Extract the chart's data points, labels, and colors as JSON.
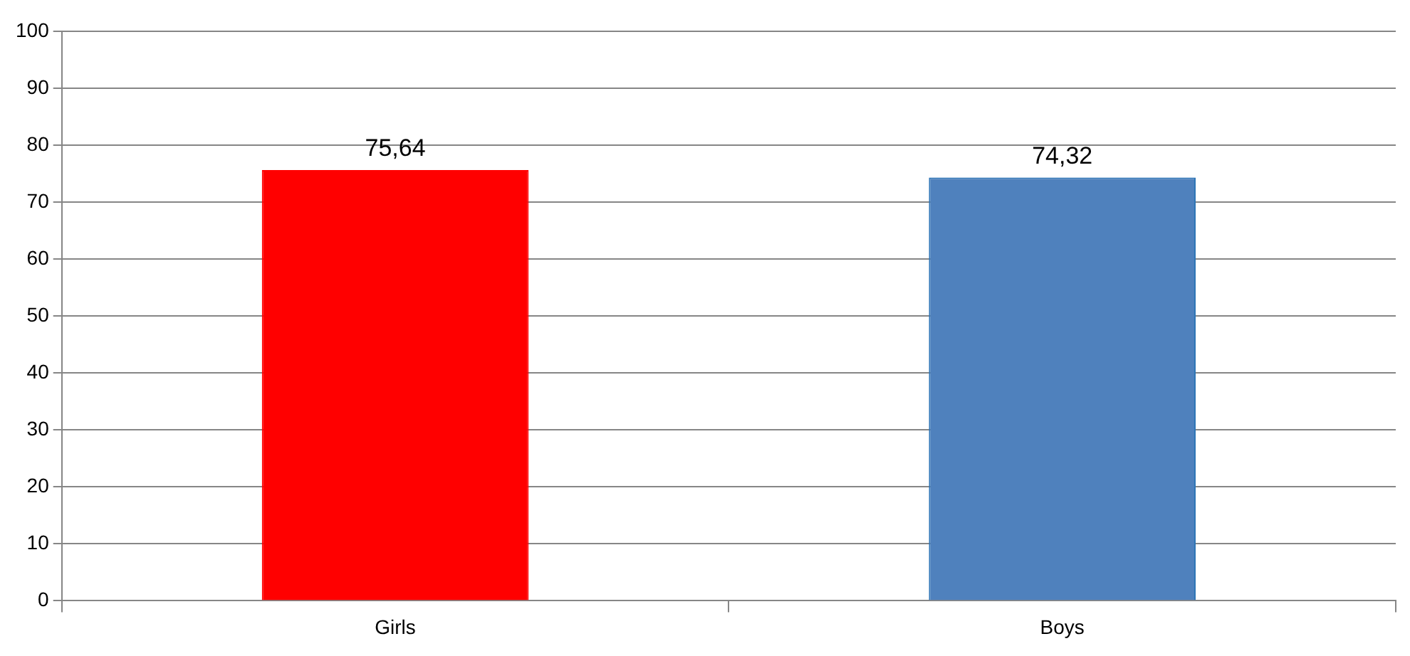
{
  "chart_data": {
    "type": "bar",
    "categories": [
      "Girls",
      "Boys"
    ],
    "values": [
      75.64,
      74.32
    ],
    "colors": [
      "#ff0000",
      "#4f81bd"
    ],
    "value_labels": [
      "75,64",
      "74,32"
    ],
    "ylim": [
      0,
      100
    ],
    "yticks": [
      0,
      10,
      20,
      30,
      40,
      50,
      60,
      70,
      80,
      90,
      100
    ],
    "grid": "y",
    "legend": false
  }
}
